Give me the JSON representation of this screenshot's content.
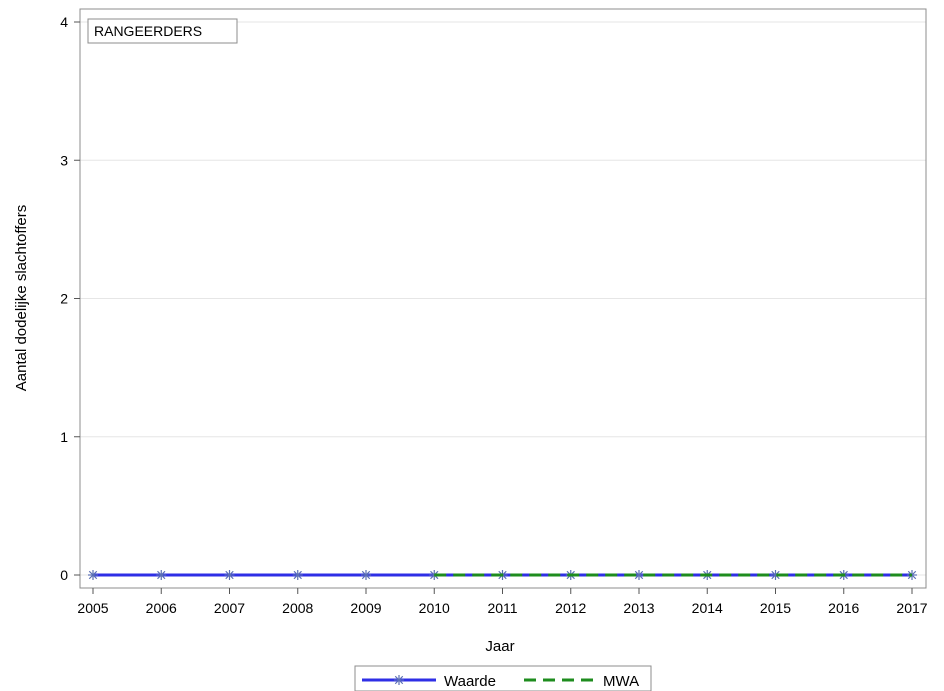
{
  "chart_data": {
    "type": "line",
    "panel_label": "RANGEERDERS",
    "xlabel": "Jaar",
    "ylabel": "Aantal dodelijke slachtoffers",
    "x": [
      2005,
      2006,
      2007,
      2008,
      2009,
      2010,
      2011,
      2012,
      2013,
      2014,
      2015,
      2016,
      2017
    ],
    "xlim": [
      2005,
      2017
    ],
    "ylim": [
      0,
      4
    ],
    "yticks": [
      0,
      1,
      2,
      3,
      4
    ],
    "grid": true,
    "legend_position": "bottom",
    "series": [
      {
        "name": "Waarde",
        "color": "#2f2fe6",
        "style": "solid-with-star-markers",
        "x": [
          2005,
          2006,
          2007,
          2008,
          2009,
          2010,
          2011,
          2012,
          2013,
          2014,
          2015,
          2016,
          2017
        ],
        "values": [
          0,
          0,
          0,
          0,
          0,
          0,
          0,
          0,
          0,
          0,
          0,
          0,
          0
        ]
      },
      {
        "name": "MWA",
        "color": "#1e8c1e",
        "style": "dashed",
        "x": [
          2010,
          2011,
          2012,
          2013,
          2014,
          2015,
          2016,
          2017
        ],
        "values": [
          0,
          0,
          0,
          0,
          0,
          0,
          0,
          0
        ]
      }
    ]
  }
}
